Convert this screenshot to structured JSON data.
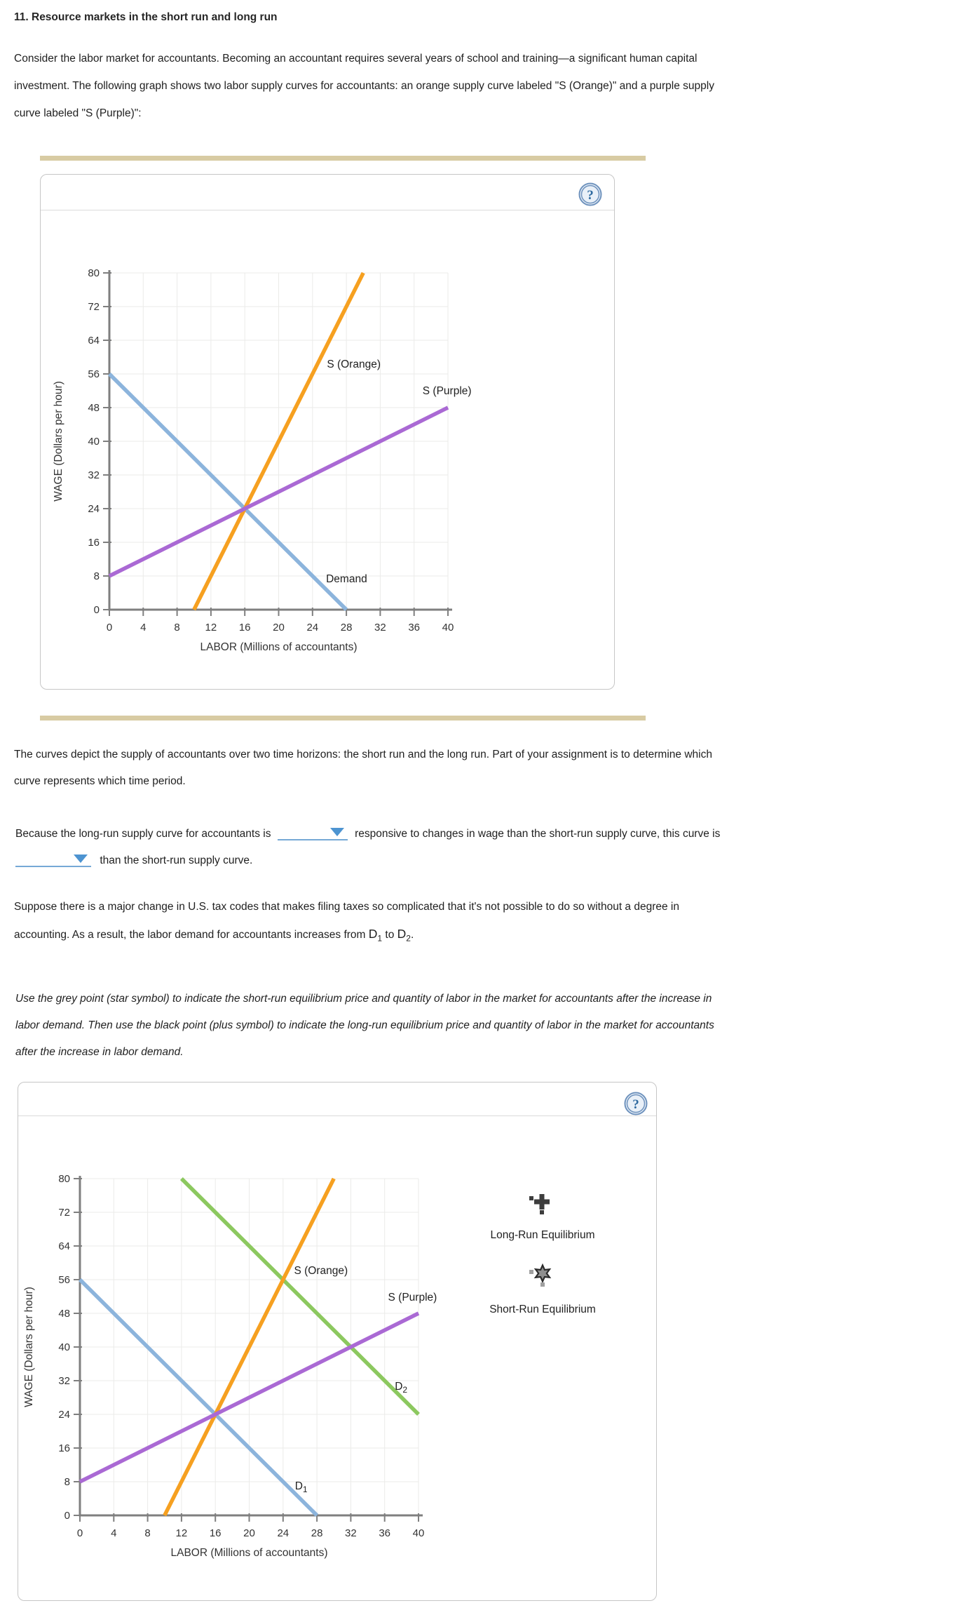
{
  "title": "11. Resource markets in the short run and long run",
  "help_icon": "?",
  "paragraphs": {
    "intro_lines": [
      "Consider the labor market for accountants. Becoming an accountant requires several years of school and training—a significant human capital",
      "investment. The following graph shows two labor supply curves for accountants: an orange supply curve labeled \"S (Orange)\" and a purple supply",
      "curve labeled \"S (Purple)\":"
    ],
    "depict_lines": [
      "The curves depict the supply of accountants over two time horizons: the short run and the long run. Part of your assignment is to determine which",
      "curve represents which time period."
    ],
    "because": {
      "part1": "Because the long-run supply curve for accountants is",
      "part2": "responsive to changes in wage than the short-run supply curve, this curve is",
      "part3": "than the short-run supply curve."
    },
    "suppose": {
      "line1": "Suppose there is a major change in U.S. tax codes that makes filing taxes so complicated that it's not possible to do so without a degree in",
      "line2_start": "accounting. As a result, the labor demand for accountants increases from ",
      "d1_base": "D",
      "d1_sub": "1",
      "to_text": " to ",
      "d2_base": "D",
      "d2_sub": "2",
      "period": "."
    },
    "instruction_lines": [
      "Use the grey point (star symbol) to indicate the short-run equilibrium price and quantity of labor in the market for accountants after the increase in",
      "labor demand. Then use the black point (plus symbol) to indicate the long-run equilibrium price and quantity of labor in the market for accountants",
      "after the increase in labor demand."
    ]
  },
  "legend": {
    "items": [
      {
        "symbol": "plus-icon",
        "label": "Long-Run Equilibrium"
      },
      {
        "symbol": "star-icon",
        "label": "Short-Run Equilibrium"
      }
    ]
  },
  "colors": {
    "orange": "#f6a020",
    "purple": "#aa69d4",
    "blue": "#8cb4dc",
    "green": "#8cc85f",
    "axis": "#7f7f7f",
    "grid": "#ebebe9",
    "tan_bar": "#d8cba3",
    "dropdown_blue": "#4d94d1",
    "plus_symbol": "#3d3d3d",
    "star_fill": "#8f8f8f",
    "star_outline": "#2b2b2b"
  },
  "chart_data": [
    {
      "id": "top-graph",
      "type": "line",
      "title": "",
      "xlabel": "LABOR (Millions of accountants)",
      "ylabel": "WAGE (Dollars per hour)",
      "xlim": [
        0,
        40
      ],
      "ylim": [
        0,
        80
      ],
      "xticks": [
        0,
        4,
        8,
        12,
        16,
        20,
        24,
        28,
        32,
        36,
        40
      ],
      "yticks": [
        0,
        8,
        16,
        24,
        32,
        40,
        48,
        56,
        64,
        72,
        80
      ],
      "grid": true,
      "legend_position": "none",
      "series": [
        {
          "name": "Demand",
          "color": "#8cb4dc",
          "points": [
            [
              0,
              56
            ],
            [
              28,
              0
            ]
          ],
          "label": {
            "text": "Demand",
            "x": 25.6,
            "y": 6.5
          }
        },
        {
          "name": "S (Orange)",
          "color": "#f6a020",
          "points": [
            [
              10,
              0
            ],
            [
              30,
              80
            ]
          ],
          "label": {
            "text": "S (Orange)",
            "x": 25.7,
            "y": 57.5
          }
        },
        {
          "name": "S (Purple)",
          "color": "#aa69d4",
          "points": [
            [
              0,
              8
            ],
            [
              40,
              48
            ]
          ],
          "label": {
            "text": "S (Purple)",
            "x": 37.0,
            "y": 51.2
          }
        }
      ]
    },
    {
      "id": "bottom-graph",
      "type": "line",
      "title": "",
      "xlabel": "LABOR (Millions of accountants)",
      "ylabel": "WAGE (Dollars per hour)",
      "xlim": [
        0,
        40
      ],
      "ylim": [
        0,
        80
      ],
      "xticks": [
        0,
        4,
        8,
        12,
        16,
        20,
        24,
        28,
        32,
        36,
        40
      ],
      "yticks": [
        0,
        8,
        16,
        24,
        32,
        40,
        48,
        56,
        64,
        72,
        80
      ],
      "grid": true,
      "legend_position": "right",
      "series": [
        {
          "name": "D1",
          "color": "#8cb4dc",
          "points": [
            [
              0,
              56
            ],
            [
              28,
              0
            ]
          ],
          "label": {
            "text": "D",
            "sub": "1",
            "x": 25.4,
            "y": 6.2
          }
        },
        {
          "name": "D2",
          "color": "#8cc85f",
          "points": [
            [
              12,
              80
            ],
            [
              40,
              24
            ]
          ],
          "label": {
            "text": "D",
            "sub": "2",
            "x": 37.2,
            "y": 29.8
          }
        },
        {
          "name": "S (Orange)",
          "color": "#f6a020",
          "points": [
            [
              10,
              0
            ],
            [
              30,
              80
            ]
          ],
          "label": {
            "text": "S (Orange)",
            "x": 25.3,
            "y": 57.3
          }
        },
        {
          "name": "S (Purple)",
          "color": "#aa69d4",
          "points": [
            [
              0,
              8
            ],
            [
              40,
              48
            ]
          ],
          "label": {
            "text": "S (Purple)",
            "x": 36.4,
            "y": 51.0
          }
        }
      ]
    }
  ]
}
